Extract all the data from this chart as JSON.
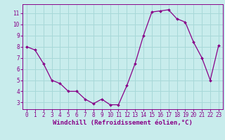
{
  "x": [
    0,
    1,
    2,
    3,
    4,
    5,
    6,
    7,
    8,
    9,
    10,
    11,
    12,
    13,
    14,
    15,
    16,
    17,
    18,
    19,
    20,
    21,
    22,
    23
  ],
  "y": [
    8.0,
    7.7,
    6.5,
    5.0,
    4.7,
    4.0,
    4.0,
    3.3,
    2.9,
    3.3,
    2.8,
    2.8,
    4.5,
    6.5,
    9.0,
    11.1,
    11.2,
    11.3,
    10.5,
    10.2,
    8.4,
    7.0,
    5.0,
    8.1
  ],
  "line_color": "#880088",
  "marker_color": "#880088",
  "bg_color": "#c8ecec",
  "grid_color": "#a8d8d8",
  "xlabel": "Windchill (Refroidissement éolien,°C)",
  "xlim": [
    -0.5,
    23.5
  ],
  "ylim": [
    2.4,
    11.8
  ],
  "yticks": [
    3,
    4,
    5,
    6,
    7,
    8,
    9,
    10,
    11
  ],
  "xticks": [
    0,
    1,
    2,
    3,
    4,
    5,
    6,
    7,
    8,
    9,
    10,
    11,
    12,
    13,
    14,
    15,
    16,
    17,
    18,
    19,
    20,
    21,
    22,
    23
  ],
  "tick_fontsize": 5.5,
  "xlabel_fontsize": 6.5
}
